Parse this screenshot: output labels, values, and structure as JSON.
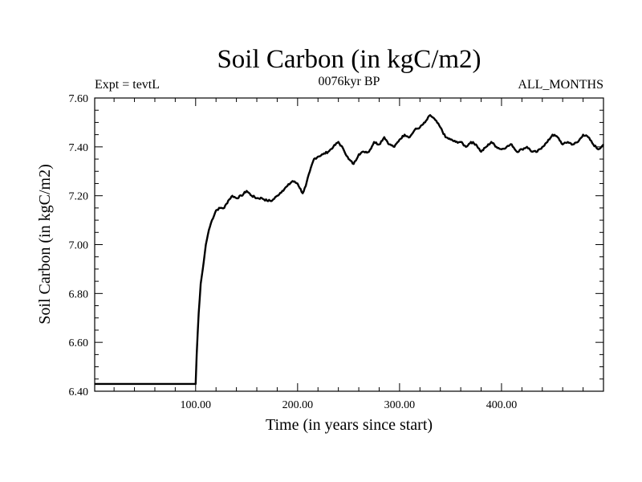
{
  "chart_data": {
    "type": "line",
    "title": "Soil Carbon (in kgC/m2)",
    "subtitle_left": "Expt = tevtL",
    "subtitle_center": "0076kyr BP",
    "subtitle_right": "ALL_MONTHS",
    "xlabel": "Time (in years since start)",
    "ylabel": "Soil Carbon (in kgC/m2)",
    "xlim": [
      1,
      500
    ],
    "ylim": [
      6.4,
      7.6
    ],
    "xticks": [
      "100.00",
      "200.00",
      "300.00",
      "400.00"
    ],
    "yticks": [
      "6.40",
      "6.60",
      "6.80",
      "7.00",
      "7.20",
      "7.40",
      "7.60"
    ],
    "grid": false,
    "series": [
      {
        "color": "#000000",
        "x": [
          1,
          100,
          101,
          103,
          105,
          108,
          110,
          113,
          116,
          120,
          124,
          128,
          132,
          136,
          140,
          145,
          150,
          155,
          160,
          165,
          170,
          175,
          180,
          185,
          190,
          195,
          200,
          205,
          208,
          212,
          216,
          220,
          225,
          230,
          235,
          240,
          245,
          250,
          255,
          260,
          265,
          270,
          275,
          280,
          285,
          290,
          295,
          300,
          305,
          310,
          315,
          320,
          325,
          330,
          335,
          340,
          345,
          350,
          355,
          360,
          365,
          370,
          375,
          380,
          385,
          390,
          395,
          400,
          405,
          410,
          415,
          420,
          425,
          430,
          435,
          440,
          445,
          450,
          455,
          460,
          465,
          470,
          475,
          480,
          485,
          490,
          495,
          500
        ],
        "values": [
          6.43,
          6.43,
          6.55,
          6.72,
          6.84,
          6.93,
          7.0,
          7.06,
          7.1,
          7.14,
          7.15,
          7.15,
          7.18,
          7.2,
          7.19,
          7.2,
          7.22,
          7.2,
          7.19,
          7.19,
          7.18,
          7.18,
          7.2,
          7.22,
          7.24,
          7.26,
          7.25,
          7.21,
          7.24,
          7.3,
          7.35,
          7.36,
          7.37,
          7.38,
          7.4,
          7.42,
          7.39,
          7.35,
          7.33,
          7.37,
          7.38,
          7.38,
          7.42,
          7.41,
          7.44,
          7.41,
          7.4,
          7.43,
          7.45,
          7.44,
          7.47,
          7.48,
          7.5,
          7.53,
          7.51,
          7.48,
          7.44,
          7.43,
          7.42,
          7.42,
          7.4,
          7.42,
          7.41,
          7.38,
          7.4,
          7.42,
          7.4,
          7.39,
          7.4,
          7.41,
          7.38,
          7.39,
          7.4,
          7.38,
          7.38,
          7.4,
          7.42,
          7.45,
          7.44,
          7.41,
          7.42,
          7.41,
          7.42,
          7.45,
          7.44,
          7.41,
          7.39,
          7.41
        ]
      }
    ]
  }
}
